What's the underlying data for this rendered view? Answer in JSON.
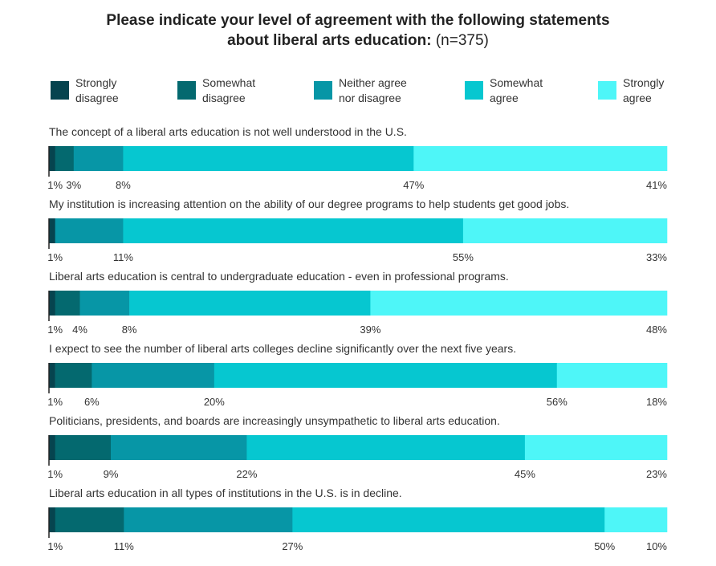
{
  "title": {
    "line1": "Please indicate your level of agreement with the following statements",
    "line2_bold": "about liberal arts education:",
    "line2_rest": " (n=375)"
  },
  "legend": [
    {
      "label_line1": "Strongly",
      "label_line2": "disagree",
      "color": "#06444f"
    },
    {
      "label_line1": "Somewhat",
      "label_line2": "disagree",
      "color": "#04696f"
    },
    {
      "label_line1": "Neither agree",
      "label_line2": "nor disagree",
      "color": "#0796a6"
    },
    {
      "label_line1": "Somewhat",
      "label_line2": "agree",
      "color": "#06c7d0"
    },
    {
      "label_line1": "Strongly",
      "label_line2": "agree",
      "color": "#4ef6f8"
    }
  ],
  "chart_data": {
    "type": "bar",
    "orientation": "horizontal-stacked-100",
    "title": "Please indicate your level of agreement with the following statements about liberal arts education: (n=375)",
    "series_names": [
      "Strongly disagree",
      "Somewhat disagree",
      "Neither agree nor disagree",
      "Somewhat agree",
      "Strongly agree"
    ],
    "colors": [
      "#06444f",
      "#04696f",
      "#0796a6",
      "#06c7d0",
      "#4ef6f8"
    ],
    "xlim": [
      0,
      100
    ],
    "rows": [
      {
        "statement": "The concept of a liberal arts education is not well understood in the U.S.",
        "values": [
          1,
          3,
          8,
          47,
          41
        ],
        "labels": [
          "1%",
          "3%",
          "8%",
          "47%",
          "41%"
        ]
      },
      {
        "statement": "My institution is increasing attention on the ability of our degree programs to help students get good jobs.",
        "values": [
          1,
          0,
          11,
          55,
          33
        ],
        "labels": [
          "1%",
          "",
          "11%",
          "55%",
          "33%"
        ]
      },
      {
        "statement": "Liberal arts education is central to undergraduate education - even in professional programs.",
        "values": [
          1,
          4,
          8,
          39,
          48
        ],
        "labels": [
          "1%",
          "4%",
          "8%",
          "39%",
          "48%"
        ]
      },
      {
        "statement": "I expect to see the number of liberal arts colleges decline significantly over the next five years.",
        "values": [
          1,
          6,
          20,
          56,
          18
        ],
        "labels": [
          "1%",
          "6%",
          "20%",
          "56%",
          "18%"
        ]
      },
      {
        "statement": "Politicians, presidents, and boards are increasingly unsympathetic to liberal arts education.",
        "values": [
          1,
          9,
          22,
          45,
          23
        ],
        "labels": [
          "1%",
          "9%",
          "22%",
          "45%",
          "23%"
        ]
      },
      {
        "statement": "Liberal arts education in all types of institutions in the U.S. is in decline.",
        "values": [
          1,
          11,
          27,
          50,
          10
        ],
        "labels": [
          "1%",
          "11%",
          "27%",
          "50%",
          "10%"
        ]
      }
    ]
  }
}
